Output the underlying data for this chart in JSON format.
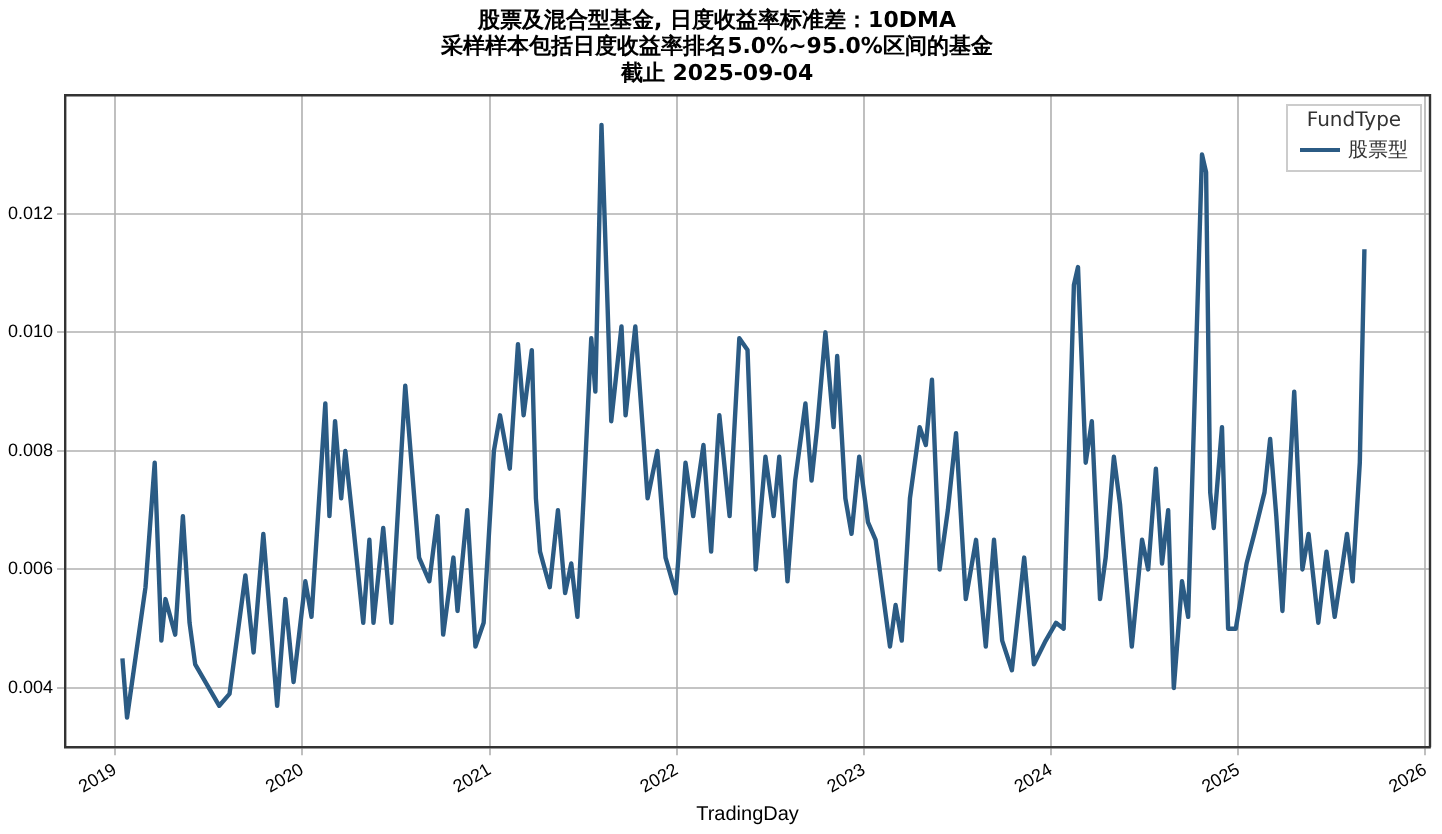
{
  "chart_data": {
    "type": "line",
    "title": "股票及混合型基金, 日度收益率标准差：10DMA",
    "subtitle": "采样样本包括日度收益率排名5.0%~95.0%区间的基金",
    "annotations": [
      "截止 2025-09-04"
    ],
    "xlabel": "TradingDay",
    "legend_title": "FundType",
    "legend": "top right",
    "grid": true,
    "marker": "none",
    "line_style": "solid",
    "xlim": [
      "2018-09-25",
      "2026-01-10"
    ],
    "ylim": [
      0.003,
      0.014
    ],
    "xticks": [
      {
        "value": "2019-01-01",
        "label": "2019"
      },
      {
        "value": "2020-01-01",
        "label": "2020"
      },
      {
        "value": "2021-01-01",
        "label": "2021"
      },
      {
        "value": "2022-01-01",
        "label": "2022"
      },
      {
        "value": "2023-01-01",
        "label": "2023"
      },
      {
        "value": "2024-01-01",
        "label": "2024"
      },
      {
        "value": "2025-01-01",
        "label": "2025"
      },
      {
        "value": "2026-01-01",
        "label": "2026"
      }
    ],
    "yticks": [
      0.004,
      0.006,
      0.008,
      {
        "value": 0.01,
        "label": "0.010"
      },
      0.012
    ],
    "x": [
      "2019-01-15",
      "2019-01-24",
      "2019-03-01",
      "2019-03-19",
      "2019-04-01",
      "2019-04-09",
      "2019-04-28",
      "2019-05-13",
      "2019-05-26",
      "2019-06-06",
      "2019-07-23",
      "2019-08-12",
      "2019-09-12",
      "2019-09-28",
      "2019-10-17",
      "2019-11-13",
      "2019-11-29",
      "2019-12-15",
      "2020-01-07",
      "2020-01-19",
      "2020-02-15",
      "2020-02-23",
      "2020-03-05",
      "2020-03-17",
      "2020-03-25",
      "2020-04-10",
      "2020-04-29",
      "2020-05-11",
      "2020-05-19",
      "2020-06-07",
      "2020-06-23",
      "2020-07-20",
      "2020-08-16",
      "2020-09-05",
      "2020-09-21",
      "2020-10-02",
      "2020-10-22",
      "2020-10-30",
      "2020-11-18",
      "2020-12-04",
      "2020-12-20",
      "2021-01-09",
      "2021-01-21",
      "2021-02-09",
      "2021-02-25",
      "2021-03-08",
      "2021-03-24",
      "2021-04-01",
      "2021-04-09",
      "2021-04-28",
      "2021-05-14",
      "2021-05-28",
      "2021-06-09",
      "2021-06-21",
      "2021-07-03",
      "2021-07-18",
      "2021-07-26",
      "2021-08-07",
      "2021-08-19",
      "2021-08-26",
      "2021-09-15",
      "2021-09-23",
      "2021-10-12",
      "2021-10-28",
      "2021-11-05",
      "2021-11-24",
      "2021-12-10",
      "2021-12-30",
      "2022-01-18",
      "2022-02-02",
      "2022-02-22",
      "2022-03-09",
      "2022-03-25",
      "2022-04-14",
      "2022-05-03",
      "2022-05-19",
      "2022-06-04",
      "2022-06-23",
      "2022-07-09",
      "2022-07-20",
      "2022-08-05",
      "2022-08-20",
      "2022-09-09",
      "2022-09-21",
      "2022-10-02",
      "2022-10-18",
      "2022-11-03",
      "2022-11-10",
      "2022-11-26",
      "2022-12-08",
      "2022-12-23",
      "2023-01-09",
      "2023-01-24",
      "2023-02-21",
      "2023-03-04",
      "2023-03-16",
      "2023-04-01",
      "2023-04-20",
      "2023-05-02",
      "2023-05-14",
      "2023-05-29",
      "2023-06-14",
      "2023-06-30",
      "2023-07-19",
      "2023-08-08",
      "2023-08-27",
      "2023-09-12",
      "2023-09-28",
      "2023-10-17",
      "2023-11-10",
      "2023-11-29",
      "2023-12-22",
      "2024-01-11",
      "2024-01-26",
      "2024-02-15",
      "2024-02-23",
      "2024-03-09",
      "2024-03-21",
      "2024-04-06",
      "2024-04-17",
      "2024-05-03",
      "2024-05-15",
      "2024-06-07",
      "2024-06-27",
      "2024-07-09",
      "2024-07-24",
      "2024-08-05",
      "2024-08-17",
      "2024-08-28",
      "2024-09-13",
      "2024-09-25",
      "2024-10-22",
      "2024-10-30",
      "2024-11-07",
      "2024-11-14",
      "2024-11-30",
      "2024-12-12",
      "2024-12-27",
      "2025-01-17",
      "2025-02-01",
      "2025-02-21",
      "2025-03-04",
      "2025-03-16",
      "2025-03-28",
      "2025-04-20",
      "2025-05-06",
      "2025-05-18",
      "2025-06-06",
      "2025-06-22",
      "2025-07-08",
      "2025-07-22",
      "2025-08-01",
      "2025-08-12",
      "2025-08-26",
      "2025-09-04"
    ],
    "series": [
      {
        "name": "股票型",
        "color": "#2b5b84",
        "values": [
          0.0045,
          0.0035,
          0.0057,
          0.0078,
          0.0048,
          0.0055,
          0.0049,
          0.0069,
          0.0051,
          0.0044,
          0.0037,
          0.0039,
          0.0059,
          0.0046,
          0.0066,
          0.0037,
          0.0055,
          0.0041,
          0.0058,
          0.0052,
          0.0088,
          0.0069,
          0.0085,
          0.0072,
          0.008,
          0.0067,
          0.0051,
          0.0065,
          0.0051,
          0.0067,
          0.0051,
          0.0091,
          0.0062,
          0.0058,
          0.0069,
          0.0049,
          0.0062,
          0.0053,
          0.007,
          0.0047,
          0.0051,
          0.008,
          0.0086,
          0.0077,
          0.0098,
          0.0086,
          0.0097,
          0.0072,
          0.0063,
          0.0057,
          0.007,
          0.0056,
          0.0061,
          0.0052,
          0.0072,
          0.0099,
          0.009,
          0.0135,
          0.0104,
          0.0085,
          0.0101,
          0.0086,
          0.0101,
          0.0082,
          0.0072,
          0.008,
          0.0062,
          0.0056,
          0.0078,
          0.0069,
          0.0081,
          0.0063,
          0.0086,
          0.0069,
          0.0099,
          0.0097,
          0.006,
          0.0079,
          0.0069,
          0.0079,
          0.0058,
          0.0075,
          0.0088,
          0.0075,
          0.0084,
          0.01,
          0.0084,
          0.0096,
          0.0072,
          0.0066,
          0.0079,
          0.0068,
          0.0065,
          0.0047,
          0.0054,
          0.0048,
          0.0072,
          0.0084,
          0.0081,
          0.0092,
          0.006,
          0.007,
          0.0083,
          0.0055,
          0.0065,
          0.0047,
          0.0065,
          0.0048,
          0.0043,
          0.0062,
          0.0044,
          0.0048,
          0.0051,
          0.005,
          0.0108,
          0.0111,
          0.0078,
          0.0085,
          0.0055,
          0.0062,
          0.0079,
          0.0071,
          0.0047,
          0.0065,
          0.006,
          0.0077,
          0.0061,
          0.007,
          0.004,
          0.0058,
          0.0052,
          0.013,
          0.0127,
          0.0073,
          0.0067,
          0.0084,
          0.005,
          0.005,
          0.0061,
          0.0066,
          0.0073,
          0.0082,
          0.0069,
          0.0053,
          0.009,
          0.006,
          0.0066,
          0.0051,
          0.0063,
          0.0052,
          0.006,
          0.0066,
          0.0058,
          0.0078,
          0.0114
        ]
      }
    ]
  }
}
